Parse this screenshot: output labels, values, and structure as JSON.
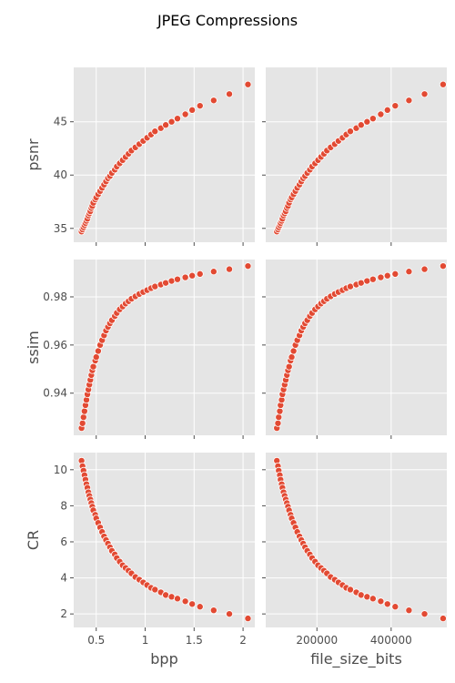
{
  "figure": {
    "title": "JPEG Compressions",
    "colors": {
      "panel_background": "#e5e5e5",
      "grid": "#ffffff",
      "marker": "#e24a33",
      "marker_edge": "#ffffff",
      "text": "#4d4d4d"
    }
  },
  "chart_data": [
    {
      "type": "scatter",
      "xlabel": "",
      "ylabel": "psnr",
      "xlim": [
        0.27,
        2.12
      ],
      "ylim": [
        33.7,
        50.1
      ],
      "xticks": [],
      "yticks": [
        35,
        40,
        45
      ],
      "x": [
        0.35,
        0.36,
        0.37,
        0.38,
        0.39,
        0.4,
        0.41,
        0.42,
        0.43,
        0.44,
        0.45,
        0.46,
        0.47,
        0.49,
        0.5,
        0.52,
        0.54,
        0.56,
        0.58,
        0.6,
        0.62,
        0.64,
        0.66,
        0.69,
        0.71,
        0.74,
        0.77,
        0.8,
        0.83,
        0.86,
        0.9,
        0.94,
        0.98,
        1.02,
        1.06,
        1.1,
        1.16,
        1.21,
        1.27,
        1.33,
        1.41,
        1.48,
        1.56,
        1.7,
        1.86,
        2.05
      ],
      "y": [
        34.7,
        34.9,
        35.1,
        35.3,
        35.5,
        35.7,
        35.9,
        36.2,
        36.4,
        36.6,
        36.9,
        37.1,
        37.4,
        37.7,
        37.9,
        38.2,
        38.5,
        38.8,
        39.1,
        39.4,
        39.7,
        39.9,
        40.2,
        40.5,
        40.8,
        41.1,
        41.4,
        41.7,
        42.0,
        42.3,
        42.6,
        42.9,
        43.2,
        43.5,
        43.8,
        44.1,
        44.4,
        44.7,
        45.0,
        45.3,
        45.7,
        46.1,
        46.5,
        47.0,
        47.6,
        48.5
      ]
    },
    {
      "type": "scatter",
      "xlabel": "",
      "ylabel": "",
      "xlim": [
        62000,
        550000
      ],
      "ylim": [
        33.7,
        50.1
      ],
      "xticks": [],
      "yticks": [],
      "x": [
        92000,
        95000,
        97000,
        100000,
        102000,
        105000,
        107000,
        110000,
        113000,
        116000,
        119000,
        122000,
        125000,
        129000,
        132000,
        137000,
        142000,
        147000,
        153000,
        158000,
        163000,
        168000,
        174000,
        181000,
        187000,
        195000,
        203000,
        211000,
        219000,
        227000,
        237000,
        248000,
        258000,
        269000,
        279000,
        290000,
        306000,
        319000,
        335000,
        351000,
        372000,
        390000,
        411000,
        448000,
        490000,
        540000
      ],
      "y": [
        34.7,
        34.9,
        35.1,
        35.3,
        35.5,
        35.7,
        35.9,
        36.2,
        36.4,
        36.6,
        36.9,
        37.1,
        37.4,
        37.7,
        37.9,
        38.2,
        38.5,
        38.8,
        39.1,
        39.4,
        39.7,
        39.9,
        40.2,
        40.5,
        40.8,
        41.1,
        41.4,
        41.7,
        42.0,
        42.3,
        42.6,
        42.9,
        43.2,
        43.5,
        43.8,
        44.1,
        44.4,
        44.7,
        45.0,
        45.3,
        45.7,
        46.1,
        46.5,
        47.0,
        47.6,
        48.5
      ]
    },
    {
      "type": "scatter",
      "xlabel": "",
      "ylabel": "ssim",
      "xlim": [
        0.27,
        2.12
      ],
      "ylim": [
        0.9225,
        0.9955
      ],
      "xticks": [],
      "yticks": [
        0.94,
        0.96,
        0.98
      ],
      "x": [
        0.35,
        0.36,
        0.37,
        0.38,
        0.39,
        0.4,
        0.41,
        0.42,
        0.43,
        0.44,
        0.45,
        0.46,
        0.47,
        0.49,
        0.5,
        0.52,
        0.54,
        0.56,
        0.58,
        0.6,
        0.62,
        0.64,
        0.66,
        0.69,
        0.71,
        0.74,
        0.77,
        0.8,
        0.83,
        0.86,
        0.9,
        0.94,
        0.98,
        1.02,
        1.06,
        1.1,
        1.16,
        1.21,
        1.27,
        1.33,
        1.41,
        1.48,
        1.56,
        1.7,
        1.86,
        2.05
      ],
      "y": [
        0.9255,
        0.9275,
        0.93,
        0.9325,
        0.935,
        0.9372,
        0.9395,
        0.9415,
        0.9435,
        0.9455,
        0.9475,
        0.9495,
        0.951,
        0.9535,
        0.955,
        0.9575,
        0.96,
        0.962,
        0.964,
        0.966,
        0.9675,
        0.969,
        0.9703,
        0.972,
        0.9733,
        0.9748,
        0.976,
        0.9772,
        0.9782,
        0.9792,
        0.9802,
        0.9812,
        0.982,
        0.9828,
        0.9836,
        0.9843,
        0.9851,
        0.9858,
        0.9866,
        0.9873,
        0.9881,
        0.9888,
        0.9895,
        0.9905,
        0.9915,
        0.9928
      ]
    },
    {
      "type": "scatter",
      "xlabel": "",
      "ylabel": "",
      "xlim": [
        62000,
        550000
      ],
      "ylim": [
        0.9225,
        0.9955
      ],
      "xticks": [],
      "yticks": [],
      "x": [
        92000,
        95000,
        97000,
        100000,
        102000,
        105000,
        107000,
        110000,
        113000,
        116000,
        119000,
        122000,
        125000,
        129000,
        132000,
        137000,
        142000,
        147000,
        153000,
        158000,
        163000,
        168000,
        174000,
        181000,
        187000,
        195000,
        203000,
        211000,
        219000,
        227000,
        237000,
        248000,
        258000,
        269000,
        279000,
        290000,
        306000,
        319000,
        335000,
        351000,
        372000,
        390000,
        411000,
        448000,
        490000,
        540000
      ],
      "y": [
        0.9255,
        0.9275,
        0.93,
        0.9325,
        0.935,
        0.9372,
        0.9395,
        0.9415,
        0.9435,
        0.9455,
        0.9475,
        0.9495,
        0.951,
        0.9535,
        0.955,
        0.9575,
        0.96,
        0.962,
        0.964,
        0.966,
        0.9675,
        0.969,
        0.9703,
        0.972,
        0.9733,
        0.9748,
        0.976,
        0.9772,
        0.9782,
        0.9792,
        0.9802,
        0.9812,
        0.982,
        0.9828,
        0.9836,
        0.9843,
        0.9851,
        0.9858,
        0.9866,
        0.9873,
        0.9881,
        0.9888,
        0.9895,
        0.9905,
        0.9915,
        0.9928
      ]
    },
    {
      "type": "scatter",
      "xlabel": "bpp",
      "ylabel": "CR",
      "xlim": [
        0.27,
        2.12
      ],
      "ylim": [
        1.25,
        10.95
      ],
      "xticks": [
        0.5,
        1.0,
        1.5,
        2.0
      ],
      "yticks": [
        2,
        4,
        6,
        8,
        10
      ],
      "x": [
        0.35,
        0.36,
        0.37,
        0.38,
        0.39,
        0.4,
        0.41,
        0.42,
        0.43,
        0.44,
        0.45,
        0.46,
        0.47,
        0.49,
        0.5,
        0.52,
        0.54,
        0.56,
        0.58,
        0.6,
        0.62,
        0.64,
        0.66,
        0.69,
        0.71,
        0.74,
        0.77,
        0.8,
        0.83,
        0.86,
        0.9,
        0.94,
        0.98,
        1.02,
        1.06,
        1.1,
        1.16,
        1.21,
        1.27,
        1.33,
        1.41,
        1.48,
        1.56,
        1.7,
        1.86,
        2.05
      ],
      "y": [
        10.5,
        10.2,
        9.95,
        9.7,
        9.45,
        9.2,
        9.0,
        8.75,
        8.55,
        8.35,
        8.15,
        7.95,
        7.75,
        7.5,
        7.3,
        7.05,
        6.8,
        6.55,
        6.3,
        6.1,
        5.9,
        5.7,
        5.5,
        5.3,
        5.1,
        4.9,
        4.7,
        4.55,
        4.4,
        4.25,
        4.05,
        3.9,
        3.75,
        3.6,
        3.45,
        3.35,
        3.2,
        3.05,
        2.95,
        2.85,
        2.7,
        2.55,
        2.4,
        2.2,
        2.0,
        1.75
      ]
    },
    {
      "type": "scatter",
      "xlabel": "file_size_bits",
      "ylabel": "",
      "xlim": [
        62000,
        550000
      ],
      "ylim": [
        1.25,
        10.95
      ],
      "xticks": [
        200000,
        400000
      ],
      "yticks": [],
      "x": [
        92000,
        95000,
        97000,
        100000,
        102000,
        105000,
        107000,
        110000,
        113000,
        116000,
        119000,
        122000,
        125000,
        129000,
        132000,
        137000,
        142000,
        147000,
        153000,
        158000,
        163000,
        168000,
        174000,
        181000,
        187000,
        195000,
        203000,
        211000,
        219000,
        227000,
        237000,
        248000,
        258000,
        269000,
        279000,
        290000,
        306000,
        319000,
        335000,
        351000,
        372000,
        390000,
        411000,
        448000,
        490000,
        540000
      ],
      "y": [
        10.5,
        10.2,
        9.95,
        9.7,
        9.45,
        9.2,
        9.0,
        8.75,
        8.55,
        8.35,
        8.15,
        7.95,
        7.75,
        7.5,
        7.3,
        7.05,
        6.8,
        6.55,
        6.3,
        6.1,
        5.9,
        5.7,
        5.5,
        5.3,
        5.1,
        4.9,
        4.7,
        4.55,
        4.4,
        4.25,
        4.05,
        3.9,
        3.75,
        3.6,
        3.45,
        3.35,
        3.2,
        3.05,
        2.95,
        2.85,
        2.7,
        2.55,
        2.4,
        2.2,
        2.0,
        1.75
      ]
    }
  ]
}
